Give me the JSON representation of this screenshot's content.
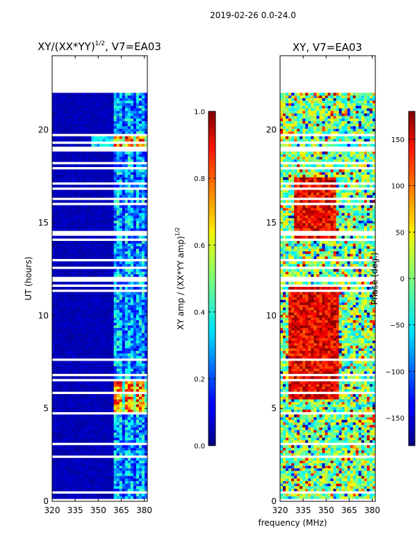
{
  "suptitle": "2019-02-26 0.0-24.0",
  "chart_data": [
    {
      "type": "heatmap",
      "title_main": "XY/(XX*YY)",
      "title_sup": "1/2",
      "title_suffix": ", V7=EA03",
      "ylabel": "UT (hours)",
      "xlabel": "",
      "xlim": [
        320,
        382
      ],
      "ylim": [
        0,
        24
      ],
      "xticks": [
        "320",
        "335",
        "350",
        "365",
        "380"
      ],
      "yticks": [
        "0",
        "5",
        "10",
        "15",
        "20"
      ],
      "colorbar": {
        "label_main": "XY amp / (XX*YY amp)",
        "label_sup": "1/2",
        "range": [
          0.0,
          1.0
        ],
        "ticks": [
          "0.0",
          "0.2",
          "0.4",
          "0.6",
          "0.8",
          "1.0"
        ]
      },
      "data_extent_hours": [
        0,
        22
      ],
      "notes": "Mostly low amplitude (~0.05) below 360 MHz; higher amplitude (0.3-0.9) in 360-382 MHz band, strongest near 5-6.5 h and 19-19.5 h"
    },
    {
      "type": "heatmap",
      "title": "XY, V7=EA03",
      "ylabel": "",
      "xlabel": "frequency (MHz)",
      "xlim": [
        320,
        382
      ],
      "ylim": [
        0,
        24
      ],
      "xticks": [
        "320",
        "335",
        "350",
        "365",
        "380"
      ],
      "yticks": [
        "0",
        "5",
        "10",
        "15",
        "20"
      ],
      "colorbar": {
        "label": "Phase (deg.)",
        "range": [
          -180,
          180
        ],
        "ticks": [
          "150",
          "100",
          "50",
          "0",
          "−50",
          "−100",
          "−150"
        ]
      },
      "data_extent_hours": [
        0,
        22
      ],
      "notes": "Phase noisy; large positive phase (~150 deg) 6-11 h and 14-17 h near 330-355 MHz"
    }
  ]
}
